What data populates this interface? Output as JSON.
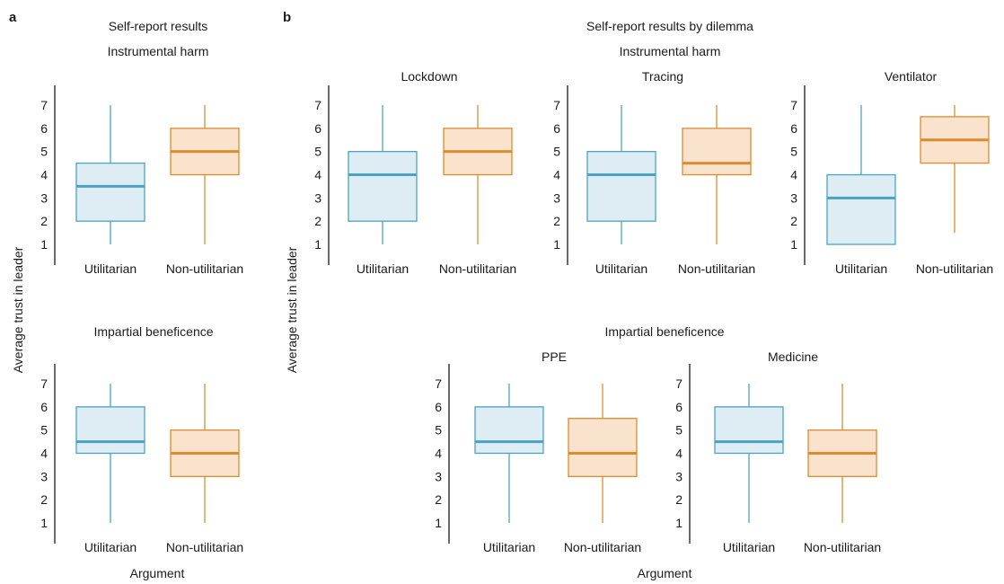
{
  "panels": {
    "a": {
      "letter": "a",
      "title": "Self-report results",
      "subtitle_top": "Instrumental harm",
      "subtitle_bottom": "Impartial beneficence"
    },
    "b": {
      "letter": "b",
      "title": "Self-report results by dilemma",
      "subtitle_top": "Instrumental harm",
      "subtitle_bottom": "Impartial beneficence"
    }
  },
  "ylabel": "Average trust in leader",
  "xlabel": "Argument",
  "colors": {
    "utilitarian_stroke": "#4ba3c3",
    "utilitarian_fill": "#deedf4",
    "nonutilitarian_stroke": "#e08a2e",
    "nonutilitarian_fill": "#f9e3cd"
  },
  "chart_data": [
    {
      "type": "box",
      "panel": "a",
      "group": "Instrumental harm",
      "title": "",
      "categories": [
        "Utilitarian",
        "Non-utilitarian"
      ],
      "ylim": [
        1,
        7
      ],
      "yticks": [
        1,
        2,
        3,
        4,
        5,
        6,
        7
      ],
      "boxes": [
        {
          "min": 1,
          "q1": 2,
          "median": 3.5,
          "q3": 4.5,
          "max": 7
        },
        {
          "min": 1,
          "q1": 4,
          "median": 5,
          "q3": 6,
          "max": 7
        }
      ]
    },
    {
      "type": "box",
      "panel": "a",
      "group": "Impartial beneficence",
      "title": "",
      "categories": [
        "Utilitarian",
        "Non-utilitarian"
      ],
      "ylim": [
        1,
        7
      ],
      "yticks": [
        1,
        2,
        3,
        4,
        5,
        6,
        7
      ],
      "boxes": [
        {
          "min": 1,
          "q1": 4,
          "median": 4.5,
          "q3": 6,
          "max": 7
        },
        {
          "min": 1,
          "q1": 3,
          "median": 4,
          "q3": 5,
          "max": 7
        }
      ]
    },
    {
      "type": "box",
      "panel": "b",
      "group": "Instrumental harm",
      "title": "Lockdown",
      "categories": [
        "Utilitarian",
        "Non-utilitarian"
      ],
      "ylim": [
        1,
        7
      ],
      "yticks": [
        1,
        2,
        3,
        4,
        5,
        6,
        7
      ],
      "boxes": [
        {
          "min": 1,
          "q1": 2,
          "median": 4,
          "q3": 5,
          "max": 7
        },
        {
          "min": 1,
          "q1": 4,
          "median": 5,
          "q3": 6,
          "max": 7
        }
      ]
    },
    {
      "type": "box",
      "panel": "b",
      "group": "Instrumental harm",
      "title": "Tracing",
      "categories": [
        "Utilitarian",
        "Non-utilitarian"
      ],
      "ylim": [
        1,
        7
      ],
      "yticks": [
        1,
        2,
        3,
        4,
        5,
        6,
        7
      ],
      "boxes": [
        {
          "min": 1,
          "q1": 2,
          "median": 4,
          "q3": 5,
          "max": 7
        },
        {
          "min": 1,
          "q1": 4,
          "median": 4.5,
          "q3": 6,
          "max": 7
        }
      ]
    },
    {
      "type": "box",
      "panel": "b",
      "group": "Instrumental harm",
      "title": "Ventilator",
      "categories": [
        "Utilitarian",
        "Non-utilitarian"
      ],
      "ylim": [
        1,
        7
      ],
      "yticks": [
        1,
        2,
        3,
        4,
        5,
        6,
        7
      ],
      "boxes": [
        {
          "min": 1,
          "q1": 1,
          "median": 3,
          "q3": 4,
          "max": 7
        },
        {
          "min": 1.5,
          "q1": 4.5,
          "median": 5.5,
          "q3": 6.5,
          "max": 7
        }
      ]
    },
    {
      "type": "box",
      "panel": "b",
      "group": "Impartial beneficence",
      "title": "PPE",
      "categories": [
        "Utilitarian",
        "Non-utilitarian"
      ],
      "ylim": [
        1,
        7
      ],
      "yticks": [
        1,
        2,
        3,
        4,
        5,
        6,
        7
      ],
      "boxes": [
        {
          "min": 1,
          "q1": 4,
          "median": 4.5,
          "q3": 6,
          "max": 7
        },
        {
          "min": 1,
          "q1": 3,
          "median": 4,
          "q3": 5.5,
          "max": 7
        }
      ]
    },
    {
      "type": "box",
      "panel": "b",
      "group": "Impartial beneficence",
      "title": "Medicine",
      "categories": [
        "Utilitarian",
        "Non-utilitarian"
      ],
      "ylim": [
        1,
        7
      ],
      "yticks": [
        1,
        2,
        3,
        4,
        5,
        6,
        7
      ],
      "boxes": [
        {
          "min": 1,
          "q1": 4,
          "median": 4.5,
          "q3": 6,
          "max": 7
        },
        {
          "min": 1,
          "q1": 3,
          "median": 4,
          "q3": 5,
          "max": 7
        }
      ]
    }
  ]
}
